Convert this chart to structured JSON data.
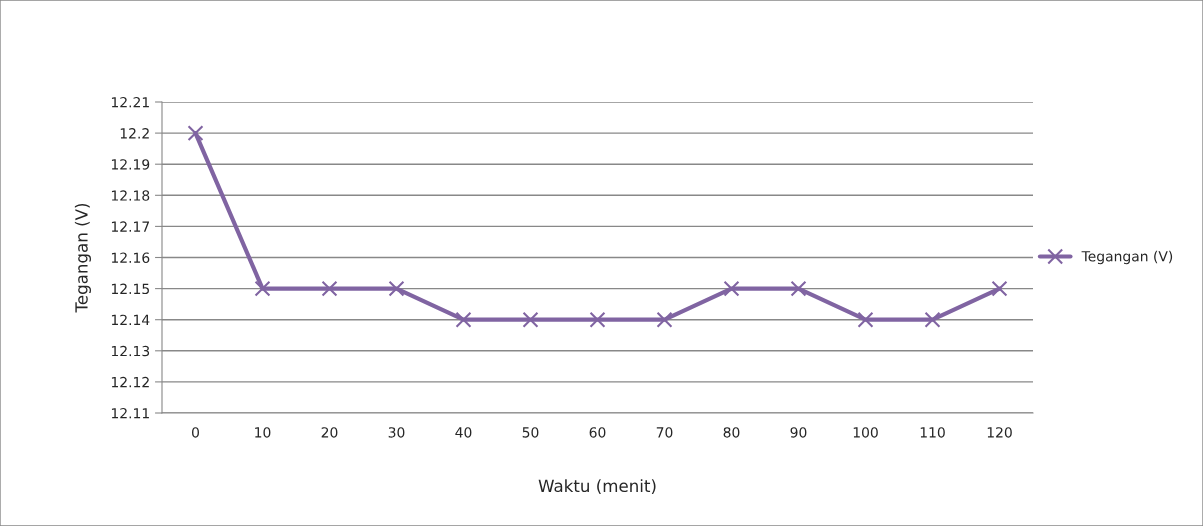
{
  "chart_data": {
    "type": "line",
    "xlabel": "Waktu (menit)",
    "ylabel": "Tegangan (V)",
    "categories": [
      "0",
      "10",
      "20",
      "30",
      "40",
      "50",
      "60",
      "70",
      "80",
      "90",
      "100",
      "110",
      "120"
    ],
    "series": [
      {
        "name": "Tegangan (V)",
        "color": "#8064a2",
        "values": [
          12.2,
          12.15,
          12.15,
          12.15,
          12.14,
          12.14,
          12.14,
          12.14,
          12.15,
          12.15,
          12.14,
          12.14,
          12.15
        ]
      }
    ],
    "ylim": [
      12.11,
      12.21
    ],
    "yticks": [
      12.11,
      12.12,
      12.13,
      12.14,
      12.15,
      12.16,
      12.17,
      12.18,
      12.19,
      12.2,
      12.21
    ],
    "grid": "y",
    "legend": "right",
    "marker": "cross",
    "line_style": "solid"
  }
}
